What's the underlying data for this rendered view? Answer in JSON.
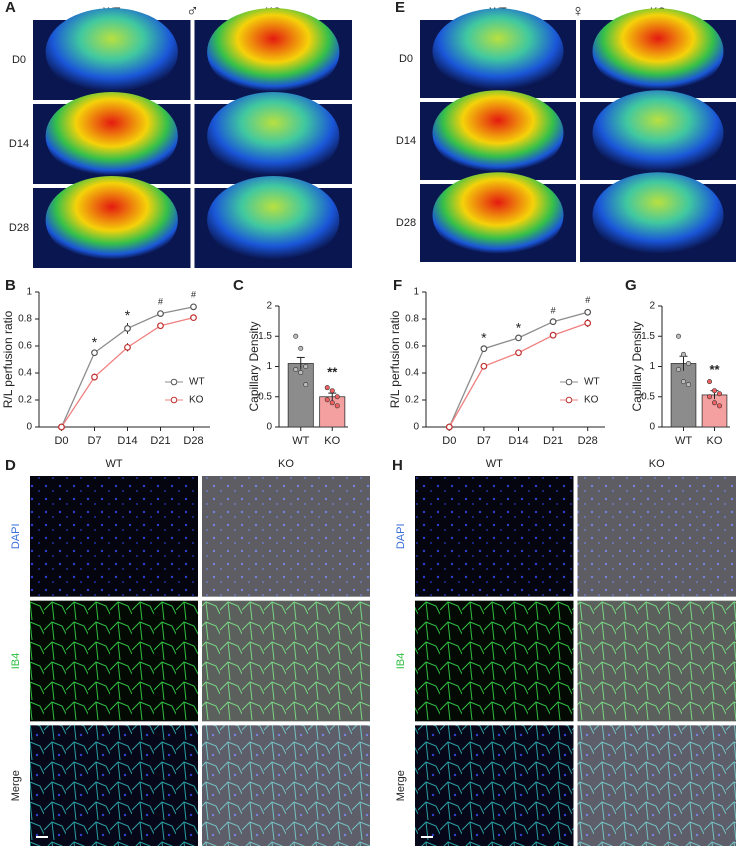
{
  "panels": [
    {
      "letter": "A",
      "columns": [
        "WT",
        "KO"
      ],
      "symbol": "♂",
      "rows": [
        "D0",
        "D14",
        "D28"
      ]
    },
    {
      "letter": "E",
      "columns": [
        "WT",
        "KO"
      ],
      "symbol": "♀",
      "rows": [
        "D0",
        "D14",
        "D28"
      ]
    },
    {
      "letter": "D",
      "columns": [
        "WT",
        "KO"
      ],
      "rows": [
        "DAPI",
        "IB4",
        "Merge"
      ]
    },
    {
      "letter": "H",
      "columns": [
        "WT",
        "KO"
      ],
      "rows": [
        "DAPI",
        "IB4",
        "Merge"
      ]
    }
  ],
  "chart_data": [
    {
      "type": "line",
      "letter": "B",
      "ylabel": "R/L perfusion ratio",
      "categories": [
        "D0",
        "D7",
        "D14",
        "D21",
        "D28"
      ],
      "series": [
        {
          "name": "WT",
          "color": "#8c8c8c",
          "values": [
            0,
            0.55,
            0.73,
            0.84,
            0.89
          ],
          "errors": [
            0,
            0.02,
            0.04,
            0.02,
            0.02
          ]
        },
        {
          "name": "KO",
          "color": "#f08080",
          "values": [
            0,
            0.37,
            0.59,
            0.75,
            0.81
          ],
          "errors": [
            0,
            0.025,
            0.03,
            0.01,
            0.02
          ]
        }
      ],
      "annotations": [
        null,
        "*",
        "*",
        "#",
        "#"
      ],
      "ylim": [
        0,
        1
      ],
      "yticks": [
        0,
        0.2,
        0.4,
        0.6,
        0.8,
        1
      ],
      "legend": "lower right"
    },
    {
      "type": "bar",
      "letter": "C",
      "ylabel": "Capillary Density",
      "categories": [
        "WT",
        "KO"
      ],
      "values": [
        1.05,
        0.5
      ],
      "errors": [
        0.1,
        0.06
      ],
      "colors": [
        "#8c8c8c",
        "#f4a0a0"
      ],
      "points": [
        [
          1.5,
          1.3,
          1.0,
          0.95,
          0.9,
          0.7
        ],
        [
          0.65,
          0.6,
          0.5,
          0.45,
          0.4,
          0.35
        ]
      ],
      "annotations": [
        null,
        "**"
      ],
      "ylim": [
        0,
        2
      ],
      "yticks": [
        0,
        0.5,
        1,
        1.5,
        2
      ]
    },
    {
      "type": "line",
      "letter": "F",
      "ylabel": "R/L perfusion ratio",
      "categories": [
        "D0",
        "D7",
        "D14",
        "D21",
        "D28"
      ],
      "series": [
        {
          "name": "WT",
          "color": "#8c8c8c",
          "values": [
            0,
            0.58,
            0.66,
            0.78,
            0.85
          ],
          "errors": [
            0,
            0.02,
            0.015,
            0.01,
            0.02
          ]
        },
        {
          "name": "KO",
          "color": "#f08080",
          "values": [
            0,
            0.45,
            0.55,
            0.68,
            0.77
          ],
          "errors": [
            0,
            0.02,
            0.02,
            0.015,
            0.03
          ]
        }
      ],
      "annotations": [
        null,
        "*",
        "*",
        "#",
        "#"
      ],
      "ylim": [
        0,
        1
      ],
      "yticks": [
        0,
        0.2,
        0.4,
        0.6,
        0.8,
        1
      ],
      "legend": "lower right"
    },
    {
      "type": "bar",
      "letter": "G",
      "ylabel": "Capillary Density",
      "categories": [
        "WT",
        "KO"
      ],
      "values": [
        1.05,
        0.53
      ],
      "errors": [
        0.12,
        0.07
      ],
      "colors": [
        "#8c8c8c",
        "#f4a0a0"
      ],
      "points": [
        [
          1.5,
          1.2,
          1.05,
          0.95,
          0.75,
          0.7
        ],
        [
          0.75,
          0.6,
          0.55,
          0.5,
          0.4,
          0.35
        ]
      ],
      "annotations": [
        null,
        "**"
      ],
      "ylim": [
        0,
        2
      ],
      "yticks": [
        0,
        0.5,
        1,
        1.5,
        2
      ]
    }
  ]
}
